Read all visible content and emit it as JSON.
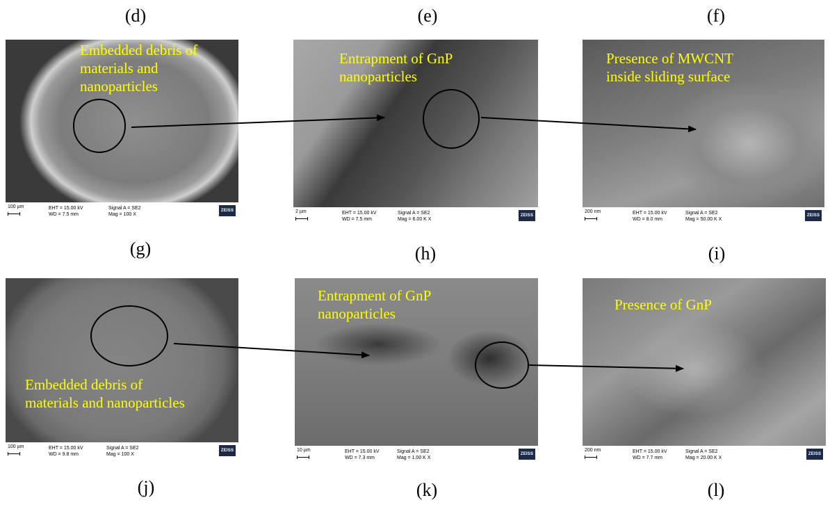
{
  "labels": [
    "(d)",
    "(e)",
    "(f)",
    "(g)",
    "(h)",
    "(i)",
    "(j)",
    "(k)",
    "(l)"
  ],
  "panels": [
    {
      "scale": "100 µm",
      "eht": "EHT = 15.00 kV",
      "wd": "WD = 7.5 mm",
      "signal": "Signal A = SE2",
      "mag": "Mag =  100 X",
      "logo": "ZEISS",
      "annotation": [
        "Embedded debris of",
        "materials and",
        "nanoparticles"
      ]
    },
    {
      "scale": "2 µm",
      "eht": "EHT = 15.00 kV",
      "wd": "WD = 7.5 mm",
      "signal": "Signal A = SE2",
      "mag": "Mag =   6.00 K X",
      "logo": "ZEISS",
      "annotation": [
        "Entrapment of GnP",
        "nanoparticles"
      ]
    },
    {
      "scale": "200 nm",
      "eht": "EHT = 15.00 kV",
      "wd": "WD = 8.0 mm",
      "signal": "Signal A = SE2",
      "mag": "Mag =  50.00 K X",
      "logo": "ZEISS",
      "annotation": [
        "Presence of MWCNT",
        "inside sliding surface"
      ]
    },
    {
      "scale": "100 µm",
      "eht": "EHT = 15.00 kV",
      "wd": "WD = 9.8 mm",
      "signal": "Signal A = SE2",
      "mag": "Mag =  100 X",
      "logo": "ZEISS",
      "annotation": [
        "Embedded debris of",
        "materials and nanoparticles"
      ]
    },
    {
      "scale": "10 µm",
      "eht": "EHT = 15.00 kV",
      "wd": "WD = 7.3 mm",
      "signal": "Signal A = SE2",
      "mag": "Mag =  1.00 K X",
      "logo": "ZEISS",
      "annotation": [
        "Entrapment of GnP",
        "nanoparticles"
      ]
    },
    {
      "scale": "200 nm",
      "eht": "EHT = 15.00 kV",
      "wd": "WD = 7.7 mm",
      "signal": "Signal A = SE2",
      "mag": "Mag =  20.00 K X",
      "logo": "ZEISS",
      "annotation": [
        "Presence of GnP"
      ]
    }
  ],
  "colors": {
    "annotation": "#ffff00",
    "background": "#ffffff"
  }
}
